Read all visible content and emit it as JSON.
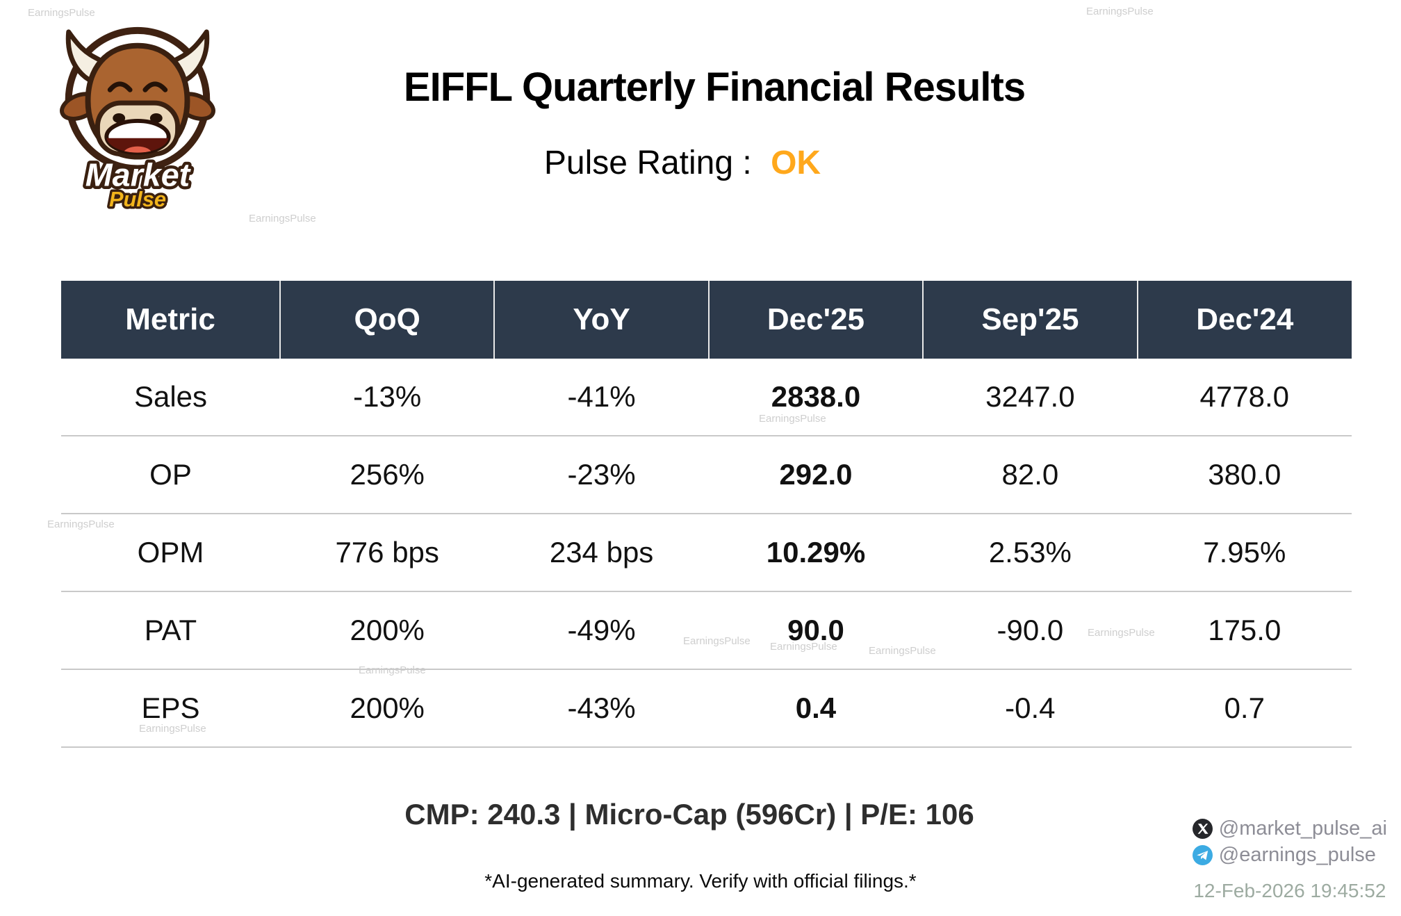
{
  "watermark_text": "EarningsPulse",
  "logo": {
    "word1": "Market",
    "word2": "Pulse"
  },
  "header": {
    "title": "EIFFL Quarterly Financial Results",
    "rating_label": "Pulse Rating :",
    "rating_value": "OK"
  },
  "table": {
    "columns": [
      "Metric",
      "QoQ",
      "YoY",
      "Dec'25",
      "Sep'25",
      "Dec'24"
    ],
    "rows": [
      {
        "metric": "Sales",
        "qoq": "-13%",
        "qoq_trend": "down",
        "yoy": "-41%",
        "yoy_trend": "down",
        "latest": "2838.0",
        "previous": "3247.0",
        "year_ago": "4778.0"
      },
      {
        "metric": "OP",
        "qoq": "256%",
        "qoq_trend": "up",
        "yoy": "-23%",
        "yoy_trend": "down",
        "latest": "292.0",
        "previous": "82.0",
        "year_ago": "380.0"
      },
      {
        "metric": "OPM",
        "qoq": "776 bps",
        "qoq_trend": "up",
        "yoy": "234 bps",
        "yoy_trend": "up",
        "latest": "10.29%",
        "previous": "2.53%",
        "year_ago": "7.95%"
      },
      {
        "metric": "PAT",
        "qoq": "200%",
        "qoq_trend": "up",
        "yoy": "-49%",
        "yoy_trend": "down",
        "latest": "90.0",
        "previous": "-90.0",
        "year_ago": "175.0"
      },
      {
        "metric": "EPS",
        "qoq": "200%",
        "qoq_trend": "up",
        "yoy": "-43%",
        "yoy_trend": "down",
        "latest": "0.4",
        "previous": "-0.4",
        "year_ago": "0.7"
      }
    ]
  },
  "footer": {
    "summary": "CMP: 240.3 | Micro-Cap (596Cr) | P/E: 106",
    "disclaimer": "*AI-generated summary. Verify with official filings.*",
    "x_handle": "@market_pulse_ai",
    "telegram_handle": "@earnings_pulse",
    "timestamp": "12-Feb-2026 19:45:52"
  },
  "colors": {
    "positive": "#138a13",
    "negative": "#ee0000",
    "rating_ok": "#ffa81c",
    "header_bg": "#2d3a4b",
    "x_icon": "#26272b",
    "telegram_icon": "#3cabe3"
  }
}
